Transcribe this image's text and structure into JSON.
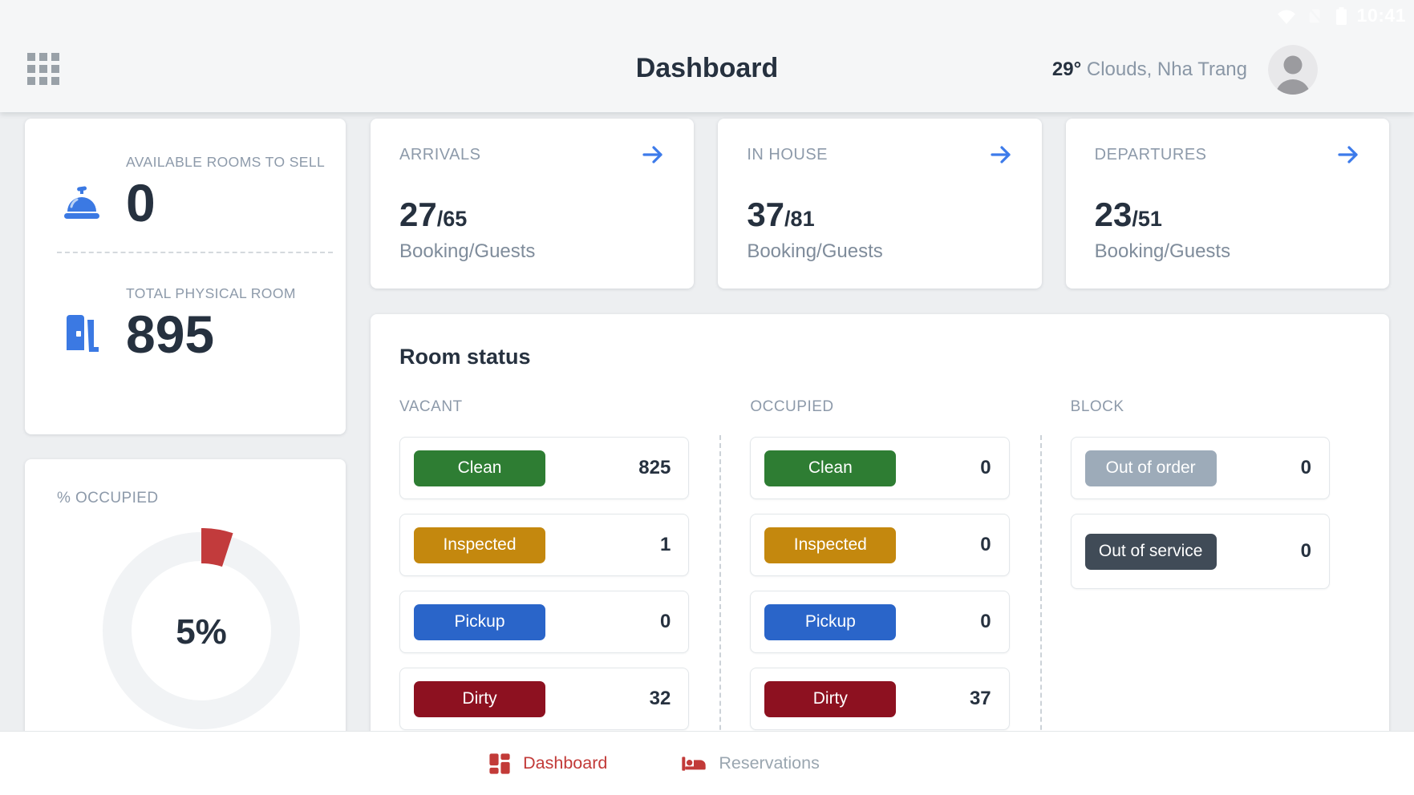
{
  "status_bar": {
    "time": "10:41"
  },
  "header": {
    "title": "Dashboard",
    "weather_temp": "29°",
    "weather_desc": " Clouds, Nha Trang"
  },
  "summary": {
    "available_label": "AVAILABLE ROOMS TO SELL",
    "available_value": "0",
    "total_label": "TOTAL PHYSICAL ROOM",
    "total_value": "895",
    "occupied_label": "% OCCUPIED",
    "occupied_pct": "5%",
    "occupied_percent_value": 5
  },
  "stat_cards": [
    {
      "label": "ARRIVALS",
      "value": "27",
      "total": "/65",
      "sub": "Booking/Guests"
    },
    {
      "label": "IN HOUSE",
      "value": "37",
      "total": "/81",
      "sub": "Booking/Guests"
    },
    {
      "label": "DEPARTURES",
      "value": "23",
      "total": "/51",
      "sub": "Booking/Guests"
    }
  ],
  "room_status": {
    "title": "Room status",
    "columns": [
      {
        "header": "VACANT",
        "rows": [
          {
            "badge": "Clean",
            "color": "#2e7d33",
            "value": "825"
          },
          {
            "badge": "Inspected",
            "color": "#c4880e",
            "value": "1"
          },
          {
            "badge": "Pickup",
            "color": "#2a65c9",
            "value": "0"
          },
          {
            "badge": "Dirty",
            "color": "#8d1120",
            "value": "32"
          }
        ]
      },
      {
        "header": "OCCUPIED",
        "rows": [
          {
            "badge": "Clean",
            "color": "#2e7d33",
            "value": "0"
          },
          {
            "badge": "Inspected",
            "color": "#c4880e",
            "value": "0"
          },
          {
            "badge": "Pickup",
            "color": "#2a65c9",
            "value": "0"
          },
          {
            "badge": "Dirty",
            "color": "#8d1120",
            "value": "37"
          }
        ]
      },
      {
        "header": "BLOCK",
        "rows": [
          {
            "badge": "Out of order",
            "color": "#9dabb9",
            "value": "0"
          },
          {
            "badge": "Out of service",
            "color": "#404b57",
            "value": "0",
            "tall": true
          }
        ]
      }
    ]
  },
  "bottom_nav": {
    "items": [
      {
        "label": "Dashboard",
        "icon": "dashboard-icon",
        "active": true
      },
      {
        "label": "Reservations",
        "icon": "reservations-icon",
        "active": false
      }
    ]
  },
  "colors": {
    "accent_blue": "#3b79e3",
    "arrow_blue": "#3d7bea",
    "nav_red": "#c23a38",
    "donut_red": "#c23b3c",
    "donut_ring": "#f1f3f5",
    "label_gray": "#8d9aaa",
    "dark_text": "#26313f"
  }
}
